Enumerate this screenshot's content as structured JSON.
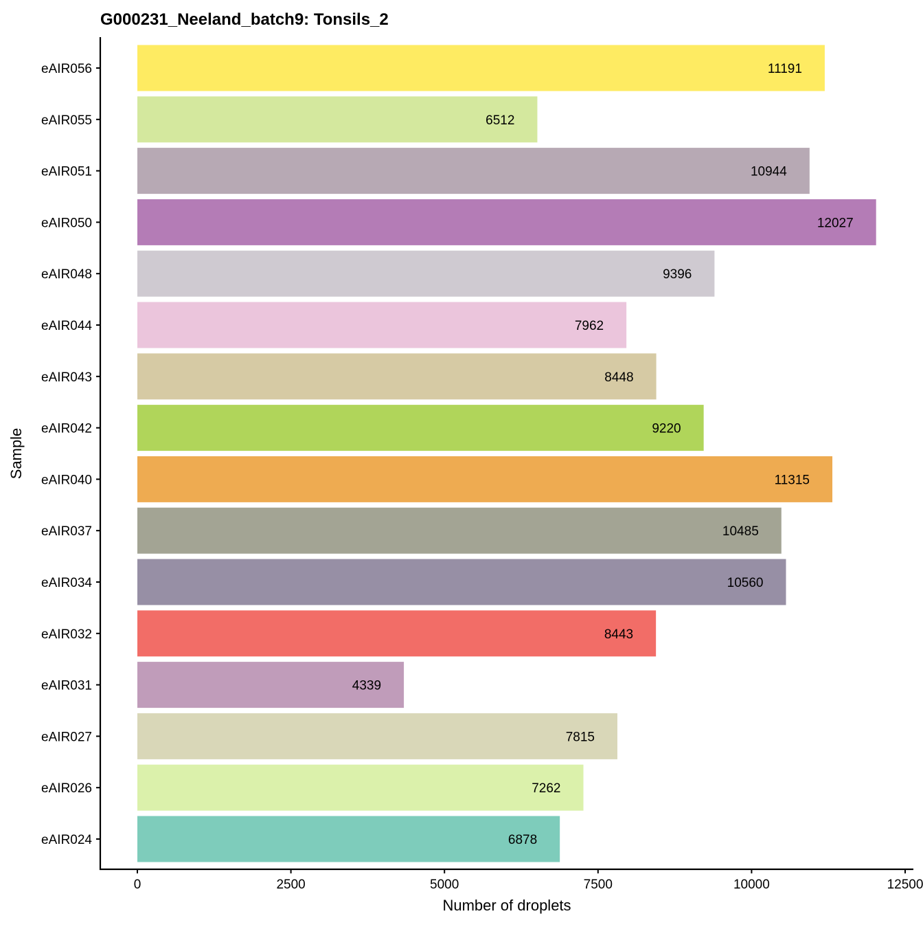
{
  "chart_data": {
    "type": "bar",
    "orientation": "horizontal",
    "title": "G000231_Neeland_batch9: Tonsils_2",
    "xlabel": "Number of droplets",
    "ylabel": "Sample",
    "xlim": [
      0,
      12500
    ],
    "xticks": [
      0,
      2500,
      5000,
      7500,
      10000,
      12500
    ],
    "xtick_labels": [
      "0",
      "2500",
      "5000",
      "7500",
      "10000",
      "12500"
    ],
    "grid": false,
    "categories": [
      "eAIR056",
      "eAIR055",
      "eAIR051",
      "eAIR050",
      "eAIR048",
      "eAIR044",
      "eAIR043",
      "eAIR042",
      "eAIR040",
      "eAIR037",
      "eAIR034",
      "eAIR032",
      "eAIR031",
      "eAIR027",
      "eAIR026",
      "eAIR024"
    ],
    "values": [
      11191,
      6512,
      10944,
      12027,
      9396,
      7962,
      8448,
      9220,
      11315,
      10485,
      10560,
      8443,
      4339,
      7815,
      7262,
      6878
    ],
    "value_labels": [
      "11191",
      "6512",
      "10944",
      "12027",
      "9396",
      "7962",
      "8448",
      "9220",
      "11315",
      "10485",
      "10560",
      "8443",
      "4339",
      "7815",
      "7262",
      "6878"
    ],
    "colors": [
      "#FEEB62",
      "#D4E89E",
      "#B7A9B4",
      "#B47CB6",
      "#CFCAD1",
      "#EBC5DC",
      "#D6CAA4",
      "#B0D55A",
      "#EEAB51",
      "#A3A494",
      "#978FA5",
      "#F26D67",
      "#C09CBA",
      "#D9D7B8",
      "#DBF1AB",
      "#7ECCBB"
    ]
  }
}
